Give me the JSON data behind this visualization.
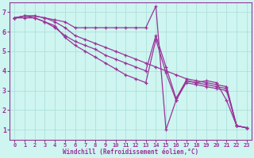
{
  "xlabel": "Windchill (Refroidissement éolien,°C)",
  "background_color": "#cef5f0",
  "grid_color": "#b8e8e4",
  "line_color": "#993399",
  "xlim": [
    -0.5,
    23.5
  ],
  "ylim": [
    0.5,
    7.5
  ],
  "xticks": [
    0,
    1,
    2,
    3,
    4,
    5,
    6,
    7,
    8,
    9,
    10,
    11,
    12,
    13,
    14,
    15,
    16,
    17,
    18,
    19,
    20,
    21,
    22,
    23
  ],
  "yticks": [
    1,
    2,
    3,
    4,
    5,
    6,
    7
  ],
  "series": [
    [
      6.7,
      6.8,
      6.8,
      6.7,
      6.6,
      6.5,
      6.2,
      6.2,
      6.2,
      6.2,
      6.2,
      6.2,
      6.2,
      6.2,
      7.3,
      1.0,
      2.5,
      3.5,
      3.4,
      3.5,
      3.4,
      2.5,
      1.2,
      1.1
    ],
    [
      6.7,
      6.8,
      6.8,
      6.7,
      6.5,
      6.2,
      5.8,
      5.6,
      5.4,
      5.2,
      5.0,
      4.8,
      4.6,
      4.4,
      4.2,
      4.0,
      3.8,
      3.6,
      3.5,
      3.4,
      3.3,
      3.2,
      1.2,
      1.1
    ],
    [
      6.7,
      6.8,
      6.7,
      6.5,
      6.2,
      5.8,
      5.5,
      5.3,
      5.1,
      4.8,
      4.6,
      4.4,
      4.2,
      4.0,
      5.8,
      4.2,
      2.6,
      3.5,
      3.4,
      3.3,
      3.2,
      3.1,
      1.2,
      1.1
    ],
    [
      6.7,
      6.7,
      6.7,
      6.5,
      6.3,
      5.7,
      5.3,
      5.0,
      4.7,
      4.4,
      4.1,
      3.8,
      3.6,
      3.4,
      5.6,
      3.9,
      2.5,
      3.4,
      3.3,
      3.2,
      3.1,
      3.0,
      1.2,
      1.1
    ]
  ]
}
